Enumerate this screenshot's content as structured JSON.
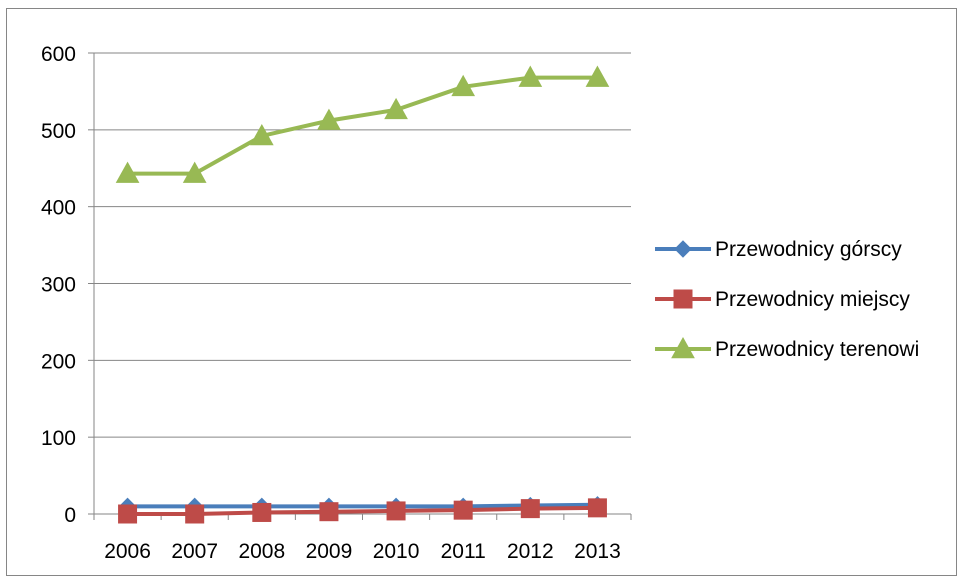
{
  "chart_data": {
    "type": "line",
    "title": "",
    "xlabel": "",
    "ylabel": "",
    "categories": [
      "2006",
      "2007",
      "2008",
      "2009",
      "2010",
      "2011",
      "2012",
      "2013"
    ],
    "ylim": [
      0,
      600
    ],
    "yticks": [
      0,
      100,
      200,
      300,
      400,
      500,
      600
    ],
    "grid": true,
    "legend": "right",
    "series": [
      {
        "name": "Przewodnicy górscy",
        "color": "#4a7ebb",
        "marker": "diamond",
        "values": [
          10,
          10,
          10,
          10,
          10,
          10,
          11,
          12
        ]
      },
      {
        "name": "Przewodnicy miejscy",
        "color": "#be4b48",
        "marker": "square",
        "values": [
          0,
          0,
          2,
          3,
          4,
          5,
          7,
          8
        ]
      },
      {
        "name": "Przewodnicy terenowi",
        "color": "#98b954",
        "marker": "triangle",
        "values": [
          443,
          443,
          492,
          512,
          526,
          556,
          568,
          568
        ]
      }
    ]
  }
}
